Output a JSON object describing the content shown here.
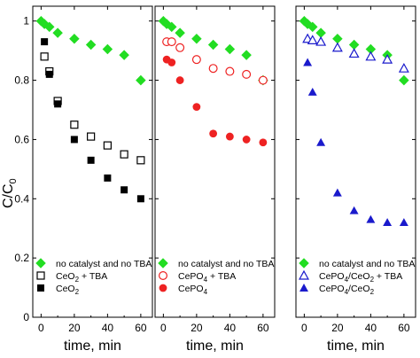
{
  "chart_data": {
    "type": "scatter",
    "ylabel_main": "C/C",
    "ylabel_sub": "0",
    "ylim": [
      0,
      1.05
    ],
    "y_ticks": [
      0,
      0.2,
      0.4,
      0.6,
      0.8,
      1
    ],
    "y_tick_labels": [
      "0",
      "0.2",
      "0.4",
      "0.6",
      "0.8",
      "1"
    ],
    "xlim": [
      -5,
      67
    ],
    "x_ticks": [
      0,
      20,
      40,
      60
    ],
    "legend_position": "bottom-left",
    "colors": {
      "green": "#22dd22",
      "black": "#000000",
      "red": "#ee2222",
      "blue": "#1a1acc"
    },
    "panels": [
      {
        "xlabel": "time, min",
        "series": [
          {
            "name": "no catalyst and no TBA",
            "marker": "diamond",
            "fill": true,
            "color": "#22dd22",
            "x": [
              0,
              2,
              5,
              10,
              20,
              30,
              40,
              50,
              60
            ],
            "y": [
              1.0,
              0.99,
              0.98,
              0.96,
              0.94,
              0.92,
              0.905,
              0.885,
              0.8
            ]
          },
          {
            "name": "CeO2 + TBA",
            "name_main": "CeO",
            "name_sub": "2",
            "name_tail": " + TBA",
            "marker": "square",
            "fill": false,
            "color": "#000000",
            "x": [
              2,
              5,
              10,
              20,
              30,
              40,
              50,
              60
            ],
            "y": [
              0.88,
              0.83,
              0.73,
              0.65,
              0.61,
              0.58,
              0.55,
              0.53
            ]
          },
          {
            "name": "CeO2",
            "name_main": "CeO",
            "name_sub": "2",
            "name_tail": "",
            "marker": "square",
            "fill": true,
            "color": "#000000",
            "x": [
              2,
              5,
              10,
              20,
              30,
              40,
              50,
              60
            ],
            "y": [
              0.93,
              0.82,
              0.72,
              0.6,
              0.53,
              0.47,
              0.43,
              0.4
            ]
          }
        ]
      },
      {
        "xlabel": "time, min",
        "series": [
          {
            "name": "no catalyst and no TBA",
            "marker": "diamond",
            "fill": true,
            "color": "#22dd22",
            "x": [
              0,
              2,
              5,
              10,
              20,
              30,
              40,
              50,
              60
            ],
            "y": [
              1.0,
              0.99,
              0.98,
              0.96,
              0.94,
              0.92,
              0.905,
              0.885,
              0.8
            ]
          },
          {
            "name": "CePO4 + TBA",
            "name_main": "CePO",
            "name_sub": "4",
            "name_tail": " + TBA",
            "marker": "circle",
            "fill": false,
            "color": "#ee2222",
            "x": [
              2,
              5,
              10,
              20,
              30,
              40,
              50,
              60
            ],
            "y": [
              0.93,
              0.93,
              0.91,
              0.87,
              0.84,
              0.83,
              0.82,
              0.8
            ]
          },
          {
            "name": "CePO4",
            "name_main": "CePO",
            "name_sub": "4",
            "name_tail": "",
            "marker": "circle",
            "fill": true,
            "color": "#ee2222",
            "x": [
              2,
              5,
              10,
              20,
              30,
              40,
              50,
              60
            ],
            "y": [
              0.87,
              0.86,
              0.8,
              0.71,
              0.62,
              0.61,
              0.6,
              0.59
            ]
          }
        ]
      },
      {
        "xlabel": "time, min",
        "series": [
          {
            "name": "no catalyst and no TBA",
            "marker": "diamond",
            "fill": true,
            "color": "#22dd22",
            "x": [
              0,
              2,
              5,
              10,
              20,
              30,
              40,
              50,
              60
            ],
            "y": [
              1.0,
              0.99,
              0.98,
              0.96,
              0.94,
              0.92,
              0.905,
              0.885,
              0.8
            ]
          },
          {
            "name": "CePO4/CeO2 + TBA",
            "name_main": "CePO",
            "name_sub": "4",
            "name_tail": "/CeO",
            "name_sub2": "2",
            "name_tail2": " + TBA",
            "marker": "triangle",
            "fill": false,
            "color": "#1a1acc",
            "x": [
              2,
              5,
              10,
              20,
              30,
              40,
              50,
              60
            ],
            "y": [
              0.94,
              0.935,
              0.93,
              0.91,
              0.89,
              0.88,
              0.87,
              0.84
            ]
          },
          {
            "name": "CePO4/CeO2",
            "name_main": "CePO",
            "name_sub": "4",
            "name_tail": "/CeO",
            "name_sub2": "2",
            "name_tail2": "",
            "marker": "triangle",
            "fill": true,
            "color": "#1a1acc",
            "x": [
              2,
              5,
              10,
              20,
              30,
              40,
              50,
              60
            ],
            "y": [
              0.86,
              0.76,
              0.59,
              0.42,
              0.36,
              0.33,
              0.32,
              0.32
            ]
          }
        ]
      }
    ]
  }
}
